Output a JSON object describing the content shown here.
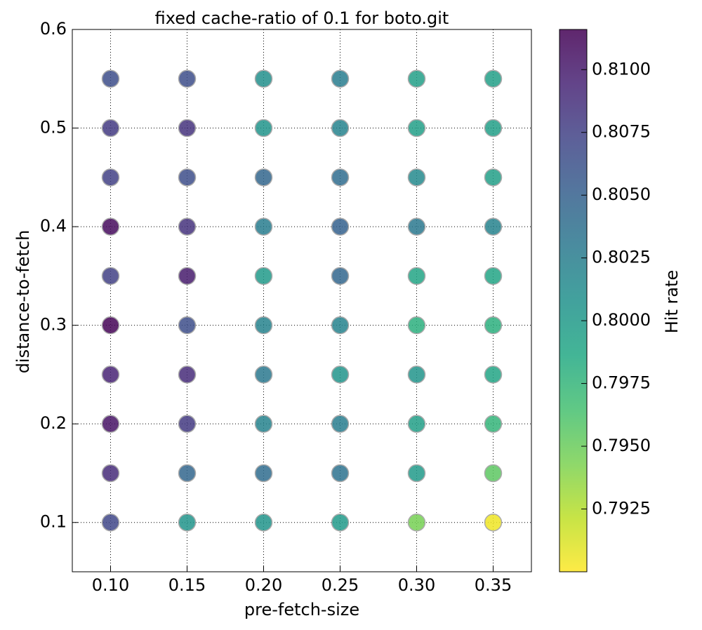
{
  "chart_data": {
    "type": "scatter",
    "title": "fixed cache-ratio of 0.1 for boto.git",
    "x_label": "pre-fetch-size",
    "y_label": "distance-to-fetch",
    "colorbar_label": "Hit rate",
    "colormap": "viridis_r",
    "grid": true,
    "xlim": [
      0.075,
      0.375
    ],
    "xticks": [
      {
        "value": 0.1,
        "label": "0.10"
      },
      {
        "value": 0.15,
        "label": "0.15"
      },
      {
        "value": 0.2,
        "label": "0.20"
      },
      {
        "value": 0.25,
        "label": "0.25"
      },
      {
        "value": 0.3,
        "label": "0.30"
      },
      {
        "value": 0.35,
        "label": "0.35"
      }
    ],
    "ylim": [
      0.05,
      0.6
    ],
    "yticks": [
      0.1,
      0.2,
      0.3,
      0.4,
      0.5,
      0.6
    ],
    "clim": [
      0.79,
      0.8116
    ],
    "cticks": [
      {
        "value": 0.7925,
        "label": "0.7925"
      },
      {
        "value": 0.795,
        "label": "0.7950"
      },
      {
        "value": 0.7975,
        "label": "0.7975"
      },
      {
        "value": 0.8,
        "label": "0.8000"
      },
      {
        "value": 0.8025,
        "label": "0.8025"
      },
      {
        "value": 0.805,
        "label": "0.8050"
      },
      {
        "value": 0.8075,
        "label": "0.8075"
      },
      {
        "value": 0.81,
        "label": "0.8100"
      }
    ],
    "x": [
      0.1,
      0.15,
      0.2,
      0.25,
      0.3,
      0.35,
      0.1,
      0.15,
      0.2,
      0.25,
      0.3,
      0.35,
      0.1,
      0.15,
      0.2,
      0.25,
      0.3,
      0.35,
      0.1,
      0.15,
      0.2,
      0.25,
      0.3,
      0.35,
      0.1,
      0.15,
      0.2,
      0.25,
      0.3,
      0.35,
      0.1,
      0.15,
      0.2,
      0.25,
      0.3,
      0.35,
      0.1,
      0.15,
      0.2,
      0.25,
      0.3,
      0.35,
      0.1,
      0.15,
      0.2,
      0.25,
      0.3,
      0.35,
      0.1,
      0.15,
      0.2,
      0.25,
      0.3,
      0.35,
      0.1,
      0.15,
      0.2,
      0.25,
      0.3,
      0.35
    ],
    "y": [
      0.55,
      0.55,
      0.55,
      0.55,
      0.55,
      0.55,
      0.5,
      0.5,
      0.5,
      0.5,
      0.5,
      0.5,
      0.45,
      0.45,
      0.45,
      0.45,
      0.45,
      0.45,
      0.4,
      0.4,
      0.4,
      0.4,
      0.4,
      0.4,
      0.35,
      0.35,
      0.35,
      0.35,
      0.35,
      0.35,
      0.3,
      0.3,
      0.3,
      0.3,
      0.3,
      0.3,
      0.25,
      0.25,
      0.25,
      0.25,
      0.25,
      0.25,
      0.2,
      0.2,
      0.2,
      0.2,
      0.2,
      0.2,
      0.15,
      0.15,
      0.15,
      0.15,
      0.15,
      0.15,
      0.1,
      0.1,
      0.1,
      0.1,
      0.1,
      0.1
    ],
    "values": [
      0.8065,
      0.8065,
      0.801,
      0.8025,
      0.7995,
      0.7995,
      0.808,
      0.8085,
      0.8005,
      0.802,
      0.7995,
      0.7995,
      0.8075,
      0.8065,
      0.8045,
      0.804,
      0.8015,
      0.7995,
      0.811,
      0.8085,
      0.8025,
      0.805,
      0.803,
      0.802,
      0.8075,
      0.81,
      0.8,
      0.8045,
      0.799,
      0.799,
      0.8115,
      0.8065,
      0.802,
      0.802,
      0.798,
      0.798,
      0.8095,
      0.809,
      0.803,
      0.8005,
      0.8005,
      0.799,
      0.8105,
      0.808,
      0.802,
      0.8025,
      0.7995,
      0.7975,
      0.809,
      0.8045,
      0.804,
      0.8035,
      0.8,
      0.7955,
      0.807,
      0.8005,
      0.8005,
      0.8,
      0.7945,
      0.7905
    ]
  }
}
